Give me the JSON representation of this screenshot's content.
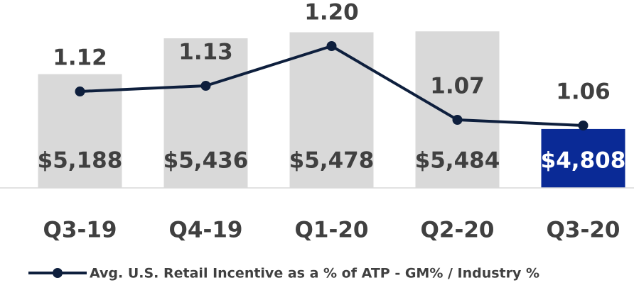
{
  "chart_data": {
    "type": "bar",
    "categories": [
      "Q3-19",
      "Q4-19",
      "Q1-20",
      "Q2-20",
      "Q3-20"
    ],
    "series": [
      {
        "type": "bar",
        "values": [
          5188,
          5436,
          5478,
          5484,
          4808
        ],
        "value_labels": [
          "$5,188",
          "$5,436",
          "$5,478",
          "$5,484",
          "$4,808"
        ],
        "colors": [
          "#d9d9d9",
          "#d9d9d9",
          "#d9d9d9",
          "#d9d9d9",
          "#0a2a96"
        ],
        "label_colors": [
          "#404040",
          "#404040",
          "#404040",
          "#404040",
          "#ffffff"
        ]
      },
      {
        "type": "line",
        "name": "Avg. U.S. Retail Incentive as a % of ATP - GM% / Industry %",
        "color": "#0e1f3d",
        "axis": "y2",
        "values": [
          1.12,
          1.13,
          1.2,
          1.07,
          1.06
        ],
        "value_labels": [
          "1.12",
          "1.13",
          "1.20",
          "1.07",
          "1.06"
        ]
      }
    ],
    "ylim": [
      4400,
      5500
    ],
    "y2lim": [
      0.95,
      1.23
    ],
    "legend": "bottom"
  }
}
